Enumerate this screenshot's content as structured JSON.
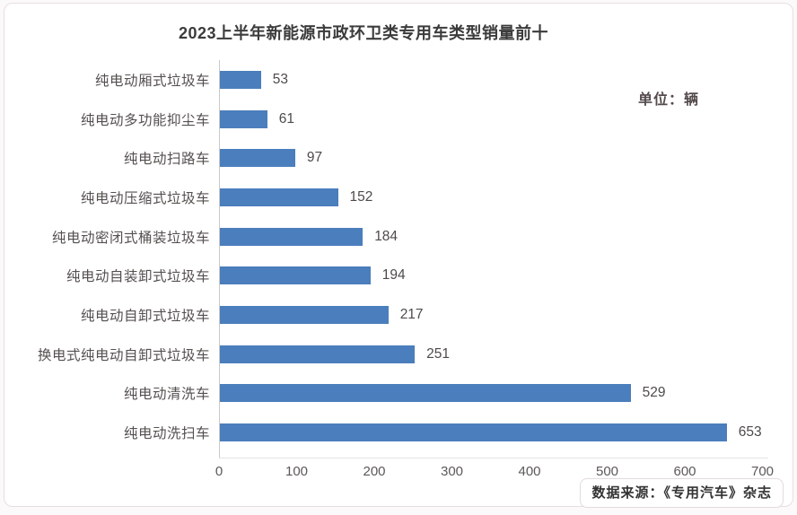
{
  "unit_label": "单位：辆",
  "source_label": "数据来源：《专用汽车》杂志",
  "colors": {
    "bar": "#4b7ebc",
    "title_text": "#3b3b3b",
    "category_text": "#55504f",
    "value_text": "#4e4a4a",
    "axis_text": "#5c5858",
    "axis_line": "#c9c9c9",
    "card_border": "#e8dee2",
    "background": "#ffffff"
  },
  "chart_data": {
    "type": "bar",
    "orientation": "horizontal",
    "title": "2023上半年新能源市政环卫类专用车类型销量前十",
    "unit": "辆",
    "categories": [
      "纯电动厢式垃圾车",
      "纯电动多功能抑尘车",
      "纯电动扫路车",
      "纯电动压缩式垃圾车",
      "纯电动密闭式桶装垃圾车",
      "纯电动自装卸式垃圾车",
      "纯电动自卸式垃圾车",
      "换电式纯电动自卸式垃圾车",
      "纯电动清洗车",
      "纯电动洗扫车"
    ],
    "values": [
      53,
      61,
      97,
      152,
      184,
      194,
      217,
      251,
      529,
      653
    ],
    "x_ticks": [
      0,
      100,
      200,
      300,
      400,
      500,
      600,
      700
    ],
    "xlim": [
      0,
      700
    ],
    "xlabel": "",
    "ylabel": "",
    "grid": false,
    "legend": false,
    "value_labels": true,
    "source": "数据来源：《专用汽车》杂志"
  }
}
